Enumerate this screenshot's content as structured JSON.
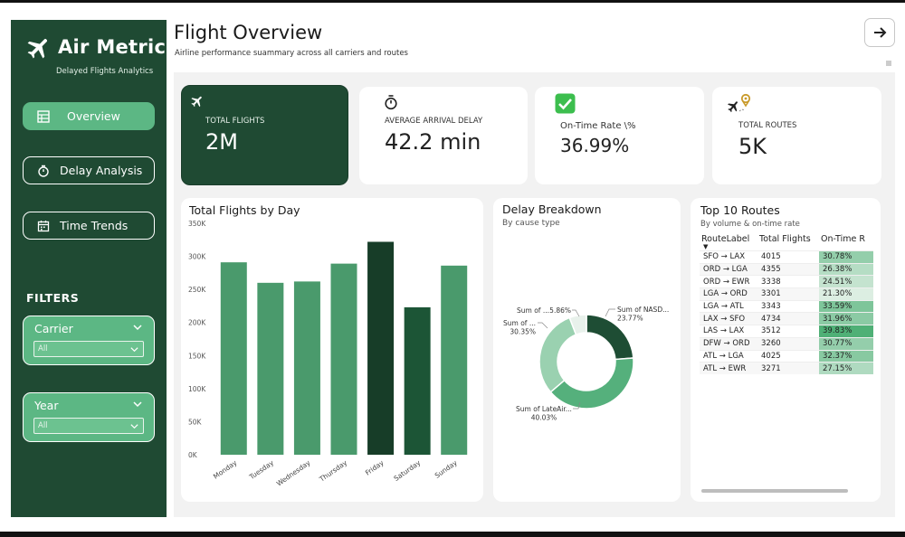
{
  "brand": {
    "title": "Air Metrics",
    "subtitle": "Delayed Flights Analytics",
    "icon": "plane-icon"
  },
  "nav": [
    {
      "label": "Overview",
      "icon": "table-icon",
      "active": true
    },
    {
      "label": "Delay Analysis",
      "icon": "stopwatch-icon",
      "active": false
    },
    {
      "label": "Time Trends",
      "icon": "calendar-icon",
      "active": false
    }
  ],
  "filters": {
    "title": "FILTERS",
    "carrier": {
      "label": "Carrier",
      "value": "All"
    },
    "year": {
      "label": "Year",
      "value": "All"
    }
  },
  "header": {
    "title": "Flight Overview",
    "subtitle": "Airline performance suammary across all carriers and routes",
    "next_icon": "arrow-right-icon"
  },
  "kpis": {
    "total_flights": {
      "label": "TOTAL FLIGHTS",
      "value": "2M",
      "icon": "plane-icon"
    },
    "avg_delay": {
      "label": "AVERAGE ARRIVAL DELAY",
      "value": "42.2 min",
      "icon": "stopwatch-icon"
    },
    "on_time": {
      "label": "On-Time Rate \\%",
      "value": "36.99%",
      "icon": "check-icon"
    },
    "routes": {
      "label": "TOTAL ROUTES",
      "value": "5K",
      "icon": "route-pin-icon"
    }
  },
  "colors": {
    "sidebar": "#1f4a33",
    "accent": "#5cb784",
    "bar": "#4a9a6c",
    "bar_dark": "#173d28",
    "donut_dark": "#1e4d34",
    "donut_mid": "#55b07c",
    "donut_light": "#9ad1b0",
    "donut_pale": "#e8f1eb"
  },
  "chart_data": [
    {
      "type": "bar",
      "title": "Total Flights by Day",
      "categories": [
        "Monday",
        "Tuesday",
        "Wednesday",
        "Thursday",
        "Friday",
        "Saturday",
        "Sunday"
      ],
      "values": [
        291000,
        260000,
        262000,
        289000,
        322000,
        223000,
        286000
      ],
      "highlight": [
        "",
        "",
        "",
        "",
        "dark",
        "dark",
        ""
      ],
      "y_ticks": [
        "0K",
        "50K",
        "100K",
        "150K",
        "200K",
        "250K",
        "300K",
        "350K"
      ],
      "ylim": [
        0,
        350000
      ]
    },
    {
      "type": "pie",
      "title": "Delay Breakdown",
      "subtitle": "By cause type",
      "slices": [
        {
          "name": "Sum of NASD...",
          "value": 23.77,
          "label": "Sum of NASD...",
          "pct": "23.77%"
        },
        {
          "name": "Sum of LateAir...",
          "value": 40.03,
          "label": "Sum of LateAir...",
          "pct": "40.03%"
        },
        {
          "name": "Sum of ...",
          "value": 30.35,
          "label": "Sum of ...",
          "pct": "30.35%"
        },
        {
          "name": "Sum of ...",
          "value": 5.86,
          "label": "Sum of ...",
          "pct": "5.86%"
        }
      ]
    }
  ],
  "routes": {
    "title": "Top 10 Routes",
    "subtitle": "By volume & on-time rate",
    "columns": [
      "RouteLabel",
      "Total Flights",
      "On-Time R"
    ],
    "rows": [
      {
        "route": "SFO → LAX",
        "flights": "4015",
        "rate": "30.78%",
        "rate_num": 30.78
      },
      {
        "route": "ORD → LGA",
        "flights": "4355",
        "rate": "26.38%",
        "rate_num": 26.38
      },
      {
        "route": "ORD → EWR",
        "flights": "3338",
        "rate": "24.51%",
        "rate_num": 24.51
      },
      {
        "route": "LGA → ORD",
        "flights": "3301",
        "rate": "21.30%",
        "rate_num": 21.3
      },
      {
        "route": "LGA → ATL",
        "flights": "3343",
        "rate": "33.59%",
        "rate_num": 33.59
      },
      {
        "route": "LAX → SFO",
        "flights": "4734",
        "rate": "31.96%",
        "rate_num": 31.96
      },
      {
        "route": "LAS → LAX",
        "flights": "3512",
        "rate": "39.83%",
        "rate_num": 39.83
      },
      {
        "route": "DFW → ORD",
        "flights": "3260",
        "rate": "30.77%",
        "rate_num": 30.77
      },
      {
        "route": "ATL → LGA",
        "flights": "4025",
        "rate": "32.37%",
        "rate_num": 32.37
      },
      {
        "route": "ATL → EWR",
        "flights": "3271",
        "rate": "27.15%",
        "rate_num": 27.15
      }
    ]
  }
}
